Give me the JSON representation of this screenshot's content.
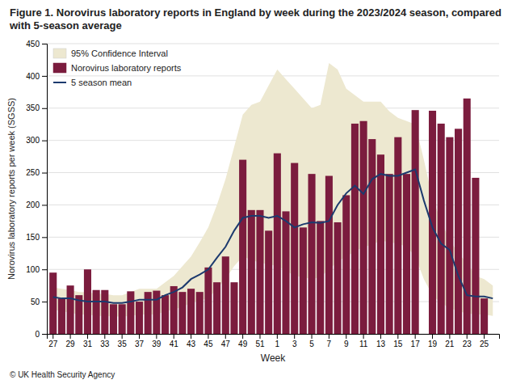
{
  "chart_data": {
    "type": "bar",
    "title": "Figure 1. Norovirus laboratory reports in England by week during the 2023/2024 season, compared with 5-season average",
    "x_label": "Week",
    "y_label": "Norovirus laboratory reports per week (SGSS)",
    "annotations": [
      "© UK Health Security Agency"
    ],
    "categories": [
      "27",
      null,
      "29",
      null,
      "31",
      null,
      "33",
      null,
      "35",
      null,
      "37",
      null,
      "39",
      null,
      "41",
      null,
      "43",
      null,
      "45",
      null,
      "47",
      null,
      "49",
      null,
      "51",
      null,
      "1",
      null,
      "3",
      null,
      "5",
      null,
      "7",
      null,
      "9",
      null,
      "11",
      null,
      "13",
      null,
      "15",
      null,
      "17",
      null,
      "19",
      null,
      "21",
      null,
      "23",
      null,
      "25",
      null
    ],
    "series": [
      {
        "name": "95% Confidence Interval",
        "type": "area",
        "color": "#EDE8D0",
        "upper": [
          72,
          70,
          68,
          65,
          65,
          62,
          62,
          60,
          60,
          65,
          70,
          70,
          70,
          80,
          90,
          105,
          120,
          142,
          165,
          200,
          240,
          290,
          340,
          355,
          360,
          385,
          410,
          395,
          380,
          365,
          350,
          355,
          420,
          410,
          380,
          370,
          360,
          360,
          360,
          345,
          335,
          330,
          325,
          270,
          210,
          175,
          145,
          125,
          110,
          90,
          85,
          75
        ],
        "lower": [
          38,
          35,
          33,
          30,
          30,
          28,
          28,
          27,
          27,
          28,
          30,
          30,
          30,
          35,
          38,
          42,
          48,
          52,
          55,
          70,
          85,
          105,
          120,
          115,
          110,
          108,
          105,
          98,
          90,
          88,
          85,
          88,
          100,
          112,
          120,
          128,
          135,
          138,
          145,
          142,
          140,
          135,
          120,
          85,
          60,
          48,
          40,
          35,
          32,
          30,
          30,
          28
        ]
      },
      {
        "name": "Norovirus laboratory reports",
        "type": "bar",
        "color": "#7B1C3E",
        "values": [
          95,
          55,
          75,
          60,
          100,
          68,
          68,
          46,
          46,
          66,
          50,
          65,
          67,
          60,
          74,
          65,
          70,
          65,
          103,
          80,
          120,
          80,
          270,
          192,
          192,
          160,
          280,
          190,
          265,
          165,
          248,
          175,
          245,
          173,
          215,
          326,
          330,
          302,
          278,
          248,
          305,
          248,
          347,
          0,
          346,
          326,
          305,
          318,
          365,
          242,
          55,
          0
        ]
      },
      {
        "name": "5 season mean",
        "type": "line",
        "color": "#1C3A6E",
        "values": [
          57,
          55,
          55,
          52,
          50,
          50,
          50,
          48,
          48,
          50,
          53,
          53,
          53,
          60,
          65,
          72,
          85,
          92,
          100,
          118,
          135,
          160,
          180,
          183,
          183,
          180,
          183,
          175,
          165,
          170,
          173,
          172,
          175,
          200,
          218,
          230,
          217,
          240,
          248,
          245,
          245,
          250,
          255,
          207,
          165,
          140,
          130,
          90,
          60,
          58,
          58,
          55
        ]
      }
    ],
    "ylim": [
      0,
      450
    ],
    "yticks": [
      0,
      50,
      100,
      150,
      200,
      250,
      300,
      350,
      400,
      450
    ],
    "grid": true,
    "legend": "upper left"
  }
}
